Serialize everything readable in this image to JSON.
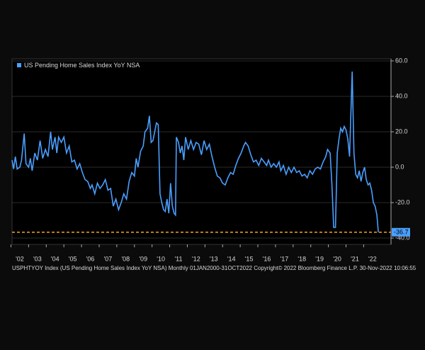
{
  "chart_data": {
    "type": "line",
    "legend": "US Pending Home Sales Index YoY NSA",
    "footer": "USPHTYOY Index (US Pending Home Sales Index YoY NSA)  Monthly 01JAN2000-31OCT2022  Copyright© 2022 Bloomberg Finance L.P.   30-Nov-2022 10:06:55",
    "series": [
      {
        "name": "US Pending Home Sales Index YoY NSA",
        "color": "#4a9fff",
        "x": [
          2002.06,
          2002.15,
          2002.25,
          2002.35,
          2002.5,
          2002.6,
          2002.75,
          2002.85,
          2003.0,
          2003.1,
          2003.2,
          2003.35,
          2003.5,
          2003.65,
          2003.8,
          2003.95,
          2004.1,
          2004.25,
          2004.35,
          2004.5,
          2004.6,
          2004.7,
          2004.85,
          2005.0,
          2005.15,
          2005.3,
          2005.45,
          2005.6,
          2005.75,
          2005.9,
          2006.05,
          2006.2,
          2006.35,
          2006.5,
          2006.6,
          2006.75,
          2006.9,
          2007.05,
          2007.2,
          2007.35,
          2007.5,
          2007.65,
          2007.8,
          2007.95,
          2008.1,
          2008.25,
          2008.4,
          2008.55,
          2008.7,
          2008.85,
          2009.0,
          2009.1,
          2009.2,
          2009.35,
          2009.5,
          2009.6,
          2009.75,
          2009.85,
          2009.95,
          2010.05,
          2010.15,
          2010.25,
          2010.35,
          2010.45,
          2010.55,
          2010.65,
          2010.75,
          2010.85,
          2010.95,
          2011.05,
          2011.15,
          2011.25,
          2011.33,
          2011.38,
          2011.5,
          2011.6,
          2011.7,
          2011.8,
          2011.9,
          2012.05,
          2012.2,
          2012.35,
          2012.5,
          2012.65,
          2012.8,
          2012.95,
          2013.1,
          2013.25,
          2013.4,
          2013.55,
          2013.7,
          2013.85,
          2014.0,
          2014.15,
          2014.3,
          2014.45,
          2014.6,
          2014.75,
          2014.9,
          2015.05,
          2015.2,
          2015.3,
          2015.45,
          2015.6,
          2015.75,
          2015.9,
          2016.05,
          2016.2,
          2016.35,
          2016.5,
          2016.6,
          2016.75,
          2016.9,
          2017.05,
          2017.2,
          2017.3,
          2017.45,
          2017.6,
          2017.75,
          2017.9,
          2018.05,
          2018.2,
          2018.35,
          2018.5,
          2018.65,
          2018.8,
          2018.95,
          2019.1,
          2019.25,
          2019.4,
          2019.55,
          2019.7,
          2019.85,
          2019.95,
          2020.1,
          2020.2,
          2020.3,
          2020.4,
          2020.5,
          2020.6,
          2020.7,
          2020.8,
          2020.9,
          2021.0,
          2021.1,
          2021.2,
          2021.35,
          2021.45,
          2021.55,
          2021.65,
          2021.75,
          2021.85,
          2021.95,
          2022.05,
          2022.15,
          2022.25,
          2022.35,
          2022.45,
          2022.55,
          2022.65,
          2022.75,
          2022.83
        ],
        "values": [
          4,
          -1,
          6,
          -1,
          0,
          4,
          19,
          2,
          0,
          5,
          -2,
          8,
          4,
          15,
          5,
          10,
          6,
          20,
          10,
          17,
          8,
          17,
          14,
          17,
          8,
          12,
          3,
          4,
          -1,
          2,
          -3,
          -7,
          -8,
          -12,
          -10,
          -15,
          -9,
          -12,
          -10,
          -7,
          -13,
          -12,
          -22,
          -18,
          -24,
          -20,
          -15,
          -18,
          -8,
          -3,
          -5,
          5,
          0,
          9,
          12,
          20,
          22,
          29,
          14,
          15,
          20,
          25,
          24,
          -15,
          -20,
          -24,
          -25,
          -18,
          -26,
          -9,
          -22,
          -26,
          -27,
          17,
          14,
          8,
          12,
          4,
          17,
          10,
          15,
          10,
          14,
          13,
          7,
          15,
          10,
          13,
          6,
          0,
          -5,
          -6,
          -9,
          -10,
          -6,
          -3,
          -4,
          1,
          5,
          8,
          12,
          14,
          12,
          7,
          3,
          4,
          1,
          5,
          3,
          1,
          4,
          0,
          2,
          0,
          3,
          -2,
          1,
          -4,
          0,
          -3,
          0,
          -3,
          -2,
          -5,
          -4,
          -6,
          -2,
          -4,
          -1,
          0,
          -1,
          3,
          6,
          10,
          8,
          -10,
          -34,
          -34,
          8,
          16,
          22,
          20,
          23,
          21,
          16,
          6,
          54,
          8,
          -4,
          -6,
          -2,
          -8,
          -3,
          0,
          -7,
          -10,
          -9,
          -13,
          -20,
          -22,
          -27,
          -36.7
        ]
      }
    ],
    "last_value": -36.7,
    "xlim": [
      2002.06,
      2023.55
    ],
    "xticks": [
      {
        "value": 2002,
        "label": "'02"
      },
      {
        "value": 2003,
        "label": "'03"
      },
      {
        "value": 2004,
        "label": "'04"
      },
      {
        "value": 2005,
        "label": "'05"
      },
      {
        "value": 2006,
        "label": "'06"
      },
      {
        "value": 2007,
        "label": "'07"
      },
      {
        "value": 2008,
        "label": "'08"
      },
      {
        "value": 2009,
        "label": "'09"
      },
      {
        "value": 2010,
        "label": "'10"
      },
      {
        "value": 2011,
        "label": "'11"
      },
      {
        "value": 2012,
        "label": "'12"
      },
      {
        "value": 2013,
        "label": "'13"
      },
      {
        "value": 2014,
        "label": "'14"
      },
      {
        "value": 2015,
        "label": "'15"
      },
      {
        "value": 2016,
        "label": "'16"
      },
      {
        "value": 2017,
        "label": "'17"
      },
      {
        "value": 2018,
        "label": "'18"
      },
      {
        "value": 2019,
        "label": "'19"
      },
      {
        "value": 2020,
        "label": "'20"
      },
      {
        "value": 2021,
        "label": "'21"
      },
      {
        "value": 2022,
        "label": "'22"
      }
    ],
    "ylim": [
      -43.6,
      60.4
    ],
    "yticks": [
      {
        "value": 60,
        "label": "60.0"
      },
      {
        "value": 40,
        "label": "40.0"
      },
      {
        "value": 20,
        "label": "20.0"
      },
      {
        "value": 0,
        "label": "0.0"
      },
      {
        "value": -20,
        "label": "-20.0"
      },
      {
        "value": -40,
        "label": "-40.0"
      }
    ],
    "grid": true
  }
}
